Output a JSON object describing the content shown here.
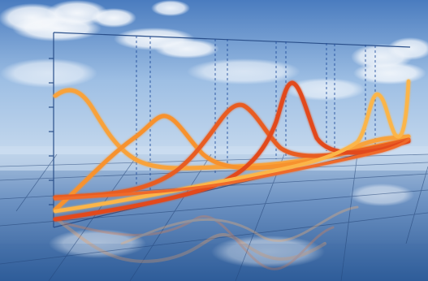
{
  "image": {
    "kind": "3d-rendered-wave-graph-over-sky",
    "palette": {
      "sky_top": "#4f7fbf",
      "sky_mid": "#a9c6e6",
      "sea_horizon": "#9fb9d8",
      "sea_bottom": "#2f5d99",
      "grid_line": "#1f3f72",
      "dash_line": "#1d4a9a",
      "curve_dark_orange": "#e24a1a",
      "curve_orange": "#f07a2a",
      "curve_light_orange": "#f8a23a",
      "curve_yellow_orange": "#fbb54a"
    },
    "icons": [
      "cloud-shape",
      "wave-curve",
      "perspective-grid"
    ]
  }
}
